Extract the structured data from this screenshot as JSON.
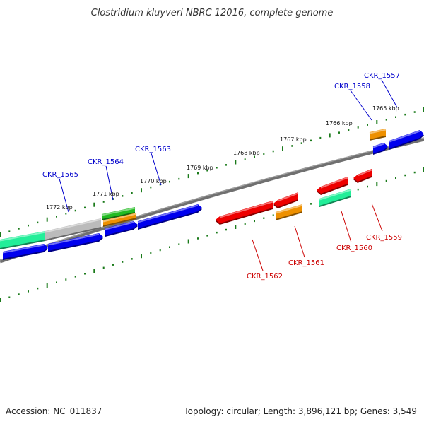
{
  "title": "Clostridium kluyveri NBRC 12016, complete genome",
  "footer": {
    "accession": "Accession: NC_011837",
    "summary": "Topology: circular; Length: 3,896,121 bp; Genes: 3,549"
  },
  "colors": {
    "forward_label": "#0000cc",
    "reverse_label": "#cc0000",
    "blue_gene": "#0000ee",
    "red_gene": "#ee0000",
    "orange_gene": "#ee9000",
    "green_gene": "#22bb22",
    "mint_gene": "#22ee99",
    "grey_gene": "#bbbbbb",
    "backbone": "#808080",
    "tick": "#1a7a1a"
  },
  "scale_labels": [
    "1765 kbp",
    "1766 kbp",
    "1767 kbp",
    "1768 kbp",
    "1769 kbp",
    "1770 kbp",
    "1771 kbp",
    "1772 kbp"
  ],
  "forward_labels": [
    "CKR_1557",
    "CKR_1558",
    "CKR_1563",
    "CKR_1564",
    "CKR_1565"
  ],
  "reverse_labels": [
    "CKR_1559",
    "CKR_1560",
    "CKR_1561",
    "CKR_1562"
  ]
}
